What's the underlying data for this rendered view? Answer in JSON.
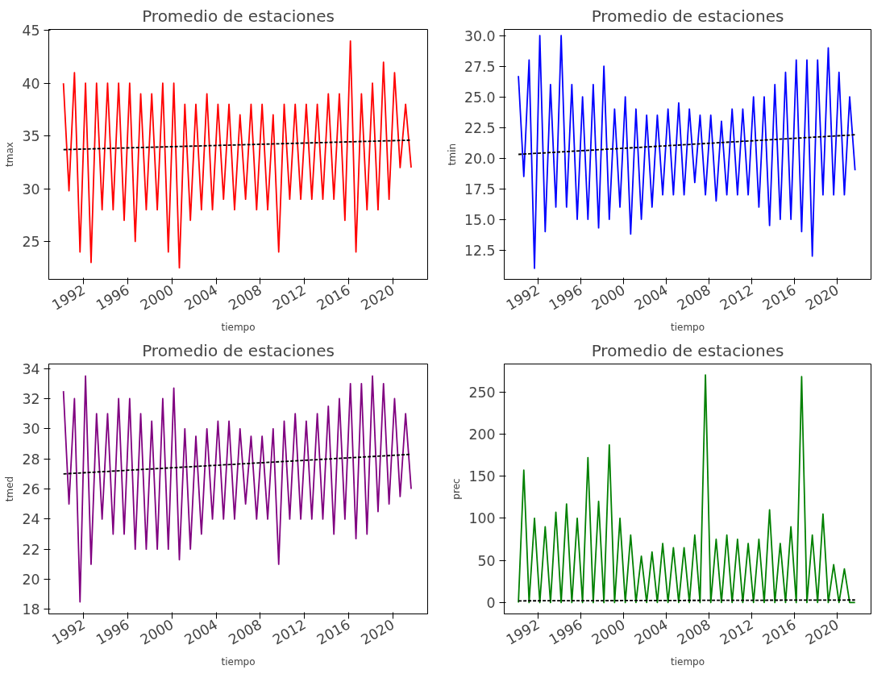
{
  "chart_data": [
    {
      "type": "line",
      "title": "Promedio de estaciones",
      "xlabel": "tiempo",
      "ylabel": "tmax",
      "grid": false,
      "x": [
        "1990-03",
        "1990-09",
        "1991-03",
        "1991-09",
        "1992-03",
        "1992-09",
        "1993-03",
        "1993-09",
        "1994-03",
        "1994-09",
        "1995-03",
        "1995-09",
        "1996-03",
        "1996-09",
        "1997-03",
        "1997-09",
        "1998-03",
        "1998-09",
        "1999-03",
        "1999-09",
        "2000-03",
        "2000-09",
        "2001-03",
        "2001-09",
        "2002-03",
        "2002-09",
        "2003-03",
        "2003-09",
        "2004-03",
        "2004-09",
        "2005-03",
        "2005-09",
        "2006-03",
        "2006-09",
        "2007-03",
        "2007-09",
        "2008-03",
        "2008-09",
        "2009-03",
        "2009-09",
        "2010-03",
        "2010-09",
        "2011-03",
        "2011-09",
        "2012-03",
        "2012-09",
        "2013-03",
        "2013-09",
        "2014-03",
        "2014-09",
        "2015-03",
        "2015-09",
        "2016-03",
        "2016-09",
        "2017-03",
        "2017-09",
        "2018-03",
        "2018-09",
        "2019-03",
        "2019-09",
        "2020-03",
        "2020-09",
        "2021-03",
        "2021-09"
      ],
      "xlim": [
        "1988-11",
        "2023-03"
      ],
      "xticks": [
        "1992",
        "1996",
        "2000",
        "2004",
        "2008",
        "2012",
        "2016",
        "2020"
      ],
      "ylim": [
        21.4,
        45.1
      ],
      "yticks": [
        25,
        30,
        35,
        40,
        45
      ],
      "series": [
        {
          "color": "#ff0000",
          "values": [
            40,
            29.8,
            41,
            24,
            40,
            23,
            40,
            28,
            40,
            28,
            40,
            27,
            40,
            25,
            39,
            28,
            39,
            28,
            40,
            24,
            40,
            22.5,
            38,
            27,
            38,
            28,
            39,
            28,
            38,
            29,
            38,
            28,
            37,
            29,
            38,
            28,
            38,
            28,
            37,
            24,
            38,
            29,
            38,
            29,
            38,
            29,
            38,
            29,
            39,
            29,
            39,
            27,
            44,
            24,
            39,
            28,
            40,
            28,
            42,
            29,
            41,
            32,
            38,
            32
          ]
        },
        {
          "type": "line",
          "color": "#000000",
          "line_style": "dashed",
          "x": [
            "1990-03",
            "2021-09"
          ],
          "values": [
            33.7,
            34.6
          ]
        }
      ]
    },
    {
      "type": "line",
      "title": "Promedio de estaciones",
      "xlabel": "tiempo",
      "ylabel": "tmin",
      "grid": false,
      "x": [
        "1990-03",
        "1990-09",
        "1991-03",
        "1991-09",
        "1992-03",
        "1992-09",
        "1993-03",
        "1993-09",
        "1994-03",
        "1994-09",
        "1995-03",
        "1995-09",
        "1996-03",
        "1996-09",
        "1997-03",
        "1997-09",
        "1998-03",
        "1998-09",
        "1999-03",
        "1999-09",
        "2000-03",
        "2000-09",
        "2001-03",
        "2001-09",
        "2002-03",
        "2002-09",
        "2003-03",
        "2003-09",
        "2004-03",
        "2004-09",
        "2005-03",
        "2005-09",
        "2006-03",
        "2006-09",
        "2007-03",
        "2007-09",
        "2008-03",
        "2008-09",
        "2009-03",
        "2009-09",
        "2010-03",
        "2010-09",
        "2011-03",
        "2011-09",
        "2012-03",
        "2012-09",
        "2013-03",
        "2013-09",
        "2014-03",
        "2014-09",
        "2015-03",
        "2015-09",
        "2016-03",
        "2016-09",
        "2017-03",
        "2017-09",
        "2018-03",
        "2018-09",
        "2019-03",
        "2019-09",
        "2020-03",
        "2020-09",
        "2021-03",
        "2021-09"
      ],
      "xlim": [
        "1988-11",
        "2023-03"
      ],
      "xticks": [
        "1992",
        "1996",
        "2000",
        "2004",
        "2008",
        "2012",
        "2016",
        "2020"
      ],
      "ylim": [
        10.1,
        30.5
      ],
      "yticks": [
        {
          "value": 12.5,
          "label": "12.5"
        },
        {
          "value": 15,
          "label": "15.0"
        },
        {
          "value": 17.5,
          "label": "17.5"
        },
        {
          "value": 20,
          "label": "20.0"
        },
        {
          "value": 22.5,
          "label": "22.5"
        },
        {
          "value": 25,
          "label": "25.0"
        },
        {
          "value": 27.5,
          "label": "27.5"
        },
        {
          "value": 30,
          "label": "30.0"
        }
      ],
      "series": [
        {
          "color": "#0000ff",
          "values": [
            26.7,
            18.5,
            28,
            11,
            30,
            14,
            26,
            16,
            30,
            16,
            26,
            15,
            25,
            15,
            26,
            14.3,
            27.5,
            15,
            24,
            16,
            25,
            13.8,
            24,
            15,
            23.5,
            16,
            23.5,
            17,
            24,
            17,
            24.5,
            17,
            24,
            18,
            23.5,
            17,
            23.5,
            16.5,
            23,
            17,
            24,
            17,
            24,
            17,
            25,
            16,
            25,
            14.5,
            26,
            15,
            27,
            15,
            28,
            14,
            28,
            12,
            28,
            17,
            29,
            17,
            27,
            17,
            25,
            19
          ]
        },
        {
          "type": "line",
          "color": "#000000",
          "line_style": "dashed",
          "x": [
            "1990-03",
            "2021-09"
          ],
          "values": [
            20.3,
            21.9
          ]
        }
      ]
    },
    {
      "type": "line",
      "title": "Promedio de estaciones",
      "xlabel": "tiempo",
      "ylabel": "tmed",
      "grid": false,
      "x": [
        "1990-03",
        "1990-09",
        "1991-03",
        "1991-09",
        "1992-03",
        "1992-09",
        "1993-03",
        "1993-09",
        "1994-03",
        "1994-09",
        "1995-03",
        "1995-09",
        "1996-03",
        "1996-09",
        "1997-03",
        "1997-09",
        "1998-03",
        "1998-09",
        "1999-03",
        "1999-09",
        "2000-03",
        "2000-09",
        "2001-03",
        "2001-09",
        "2002-03",
        "2002-09",
        "2003-03",
        "2003-09",
        "2004-03",
        "2004-09",
        "2005-03",
        "2005-09",
        "2006-03",
        "2006-09",
        "2007-03",
        "2007-09",
        "2008-03",
        "2008-09",
        "2009-03",
        "2009-09",
        "2010-03",
        "2010-09",
        "2011-03",
        "2011-09",
        "2012-03",
        "2012-09",
        "2013-03",
        "2013-09",
        "2014-03",
        "2014-09",
        "2015-03",
        "2015-09",
        "2016-03",
        "2016-09",
        "2017-03",
        "2017-09",
        "2018-03",
        "2018-09",
        "2019-03",
        "2019-09",
        "2020-03",
        "2020-09",
        "2021-03",
        "2021-09"
      ],
      "xlim": [
        "1988-11",
        "2023-03"
      ],
      "xticks": [
        "1992",
        "1996",
        "2000",
        "2004",
        "2008",
        "2012",
        "2016",
        "2020"
      ],
      "ylim": [
        17.7,
        34.3
      ],
      "yticks": [
        18,
        20,
        22,
        24,
        26,
        28,
        30,
        32,
        34
      ],
      "series": [
        {
          "color": "#800080",
          "values": [
            32.5,
            25,
            32,
            18.5,
            33.5,
            21,
            31,
            24,
            31,
            23,
            32,
            23,
            32,
            22,
            31,
            22,
            30.5,
            22,
            32,
            22,
            32.7,
            21.3,
            30,
            22,
            29.5,
            23,
            30,
            24,
            30.5,
            24,
            30.5,
            24,
            30,
            25,
            29.5,
            24,
            29.5,
            24,
            30,
            21,
            30.5,
            24,
            31,
            24,
            30.5,
            24,
            31,
            24,
            31.5,
            23,
            32,
            24,
            33,
            22.7,
            33,
            23,
            33.5,
            24.5,
            33,
            25,
            32,
            25.5,
            31,
            26
          ]
        },
        {
          "type": "line",
          "color": "#000000",
          "line_style": "dashed",
          "x": [
            "1990-03",
            "2021-09"
          ],
          "values": [
            27.0,
            28.3
          ]
        }
      ]
    },
    {
      "type": "line",
      "title": "Promedio de estaciones",
      "xlabel": "tiempo",
      "ylabel": "prec",
      "grid": false,
      "x": [
        "1990-03",
        "1990-09",
        "1991-03",
        "1991-09",
        "1992-03",
        "1992-09",
        "1993-03",
        "1993-09",
        "1994-03",
        "1994-09",
        "1995-03",
        "1995-09",
        "1996-03",
        "1996-09",
        "1997-03",
        "1997-09",
        "1998-03",
        "1998-09",
        "1999-03",
        "1999-09",
        "2000-03",
        "2000-09",
        "2001-03",
        "2001-09",
        "2002-03",
        "2002-09",
        "2003-03",
        "2003-09",
        "2004-03",
        "2004-09",
        "2005-03",
        "2005-09",
        "2006-03",
        "2006-09",
        "2007-03",
        "2007-09",
        "2008-03",
        "2008-09",
        "2009-03",
        "2009-09",
        "2010-03",
        "2010-09",
        "2011-03",
        "2011-09",
        "2012-03",
        "2012-09",
        "2013-03",
        "2013-09",
        "2014-03",
        "2014-09",
        "2015-03",
        "2015-09",
        "2016-03",
        "2016-09",
        "2017-03",
        "2017-09",
        "2018-03",
        "2018-09",
        "2019-03",
        "2019-09",
        "2020-03",
        "2020-09",
        "2021-03",
        "2021-09"
      ],
      "xlim": [
        "1988-11",
        "2023-03"
      ],
      "xticks": [
        "1992",
        "1996",
        "2000",
        "2004",
        "2008",
        "2012",
        "2016",
        "2020"
      ],
      "ylim": [
        -13.5,
        283
      ],
      "yticks": [
        0,
        50,
        100,
        150,
        200,
        250
      ],
      "series": [
        {
          "color": "#008000",
          "values": [
            0,
            157,
            0,
            100,
            0,
            90,
            0,
            107,
            0,
            117,
            0,
            100,
            0,
            172,
            0,
            120,
            0,
            187,
            0,
            100,
            0,
            80,
            0,
            55,
            0,
            60,
            0,
            70,
            0,
            65,
            0,
            65,
            0,
            80,
            0,
            270,
            0,
            75,
            0,
            80,
            0,
            75,
            0,
            70,
            0,
            75,
            0,
            110,
            0,
            70,
            0,
            90,
            0,
            268,
            0,
            80,
            0,
            105,
            0,
            45,
            0,
            40,
            0,
            0
          ]
        },
        {
          "type": "line",
          "color": "#000000",
          "line_style": "dashed",
          "x": [
            "1990-03",
            "2021-09"
          ],
          "values": [
            2,
            3
          ]
        }
      ]
    }
  ]
}
